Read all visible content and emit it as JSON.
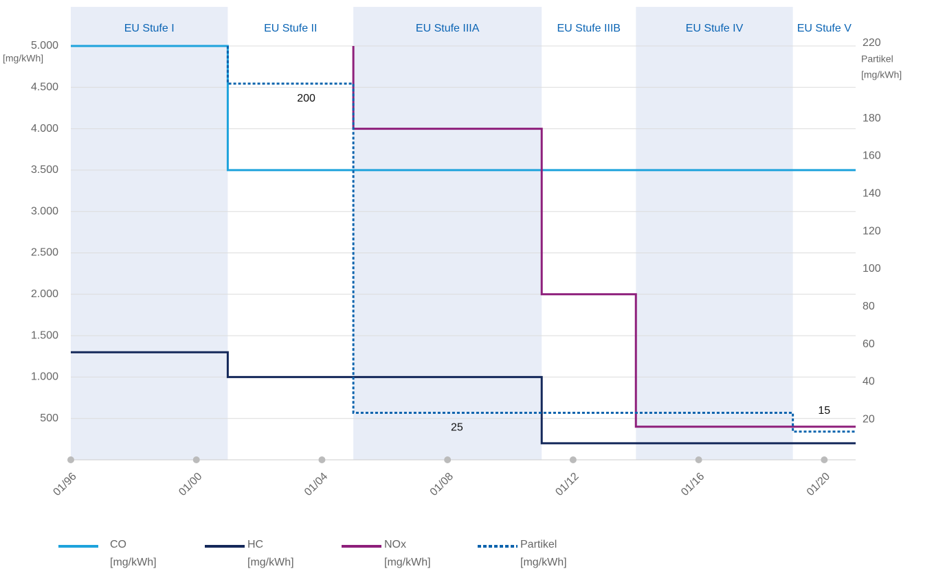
{
  "chart_data": {
    "type": "step",
    "y_label": "[mg/kWh]",
    "y2_label": [
      "Partikel",
      "[mg/kWh]"
    ],
    "xlim": [
      1996,
      2021
    ],
    "xticks": [
      {
        "value": 1996,
        "label": "01/96"
      },
      {
        "value": 2000,
        "label": "01/00"
      },
      {
        "value": 2004,
        "label": "01/04"
      },
      {
        "value": 2008,
        "label": "01/08"
      },
      {
        "value": 2012,
        "label": "01/12"
      },
      {
        "value": 2016,
        "label": "01/16"
      },
      {
        "value": 2020,
        "label": "01/20"
      }
    ],
    "ylim": [
      0,
      5000
    ],
    "yticks": [
      {
        "value": 500,
        "label": "500"
      },
      {
        "value": 1000,
        "label": "1.000"
      },
      {
        "value": 1500,
        "label": "1.500"
      },
      {
        "value": 2000,
        "label": "2.000"
      },
      {
        "value": 2500,
        "label": "2.500"
      },
      {
        "value": 3000,
        "label": "3.000"
      },
      {
        "value": 3500,
        "label": "3.500"
      },
      {
        "value": 4000,
        "label": "4.000"
      },
      {
        "value": 4500,
        "label": "4.500"
      },
      {
        "value": 5000,
        "label": "5.000"
      }
    ],
    "y2lim": [
      0,
      220
    ],
    "y2ticks": [
      20,
      40,
      60,
      80,
      100,
      120,
      140,
      160,
      180,
      220
    ],
    "grid": true,
    "bands": [
      {
        "label": "EU Stufe I",
        "from": 1996,
        "to": 2001,
        "shaded": true
      },
      {
        "label": "EU Stufe II",
        "from": 2001,
        "to": 2005,
        "shaded": false
      },
      {
        "label": "EU Stufe IIIA",
        "from": 2005,
        "to": 2011,
        "shaded": true
      },
      {
        "label": "EU Stufe IIIB",
        "from": 2011,
        "to": 2014,
        "shaded": false
      },
      {
        "label": "EU Stufe IV",
        "from": 2014,
        "to": 2019,
        "shaded": true
      },
      {
        "label": "EU Stufe V",
        "from": 2019,
        "to": 2021,
        "shaded": false
      }
    ],
    "series": [
      {
        "name": "CO",
        "unit": "[mg/kWh]",
        "color": "#1ea3dc",
        "dashed": false,
        "x": [
          1996,
          2001,
          2021
        ],
        "values": [
          5000,
          3500,
          3500
        ]
      },
      {
        "name": "HC",
        "unit": "[mg/kWh]",
        "color": "#14285a",
        "dashed": false,
        "x": [
          1996,
          2001,
          2011,
          2021
        ],
        "values": [
          1300,
          1000,
          200,
          200
        ]
      },
      {
        "name": "NOx",
        "unit": "[mg/kWh]",
        "color": "#8e1f7b",
        "dashed": false,
        "x": [
          2005,
          2005,
          2011,
          2014,
          2021
        ],
        "values": [
          5000,
          4000,
          2000,
          400,
          400
        ]
      },
      {
        "name": "Partikel",
        "unit": "[mg/kWh]",
        "color": "#0b63ad",
        "dashed": true,
        "axis": "y2",
        "x": [
          2001,
          2001,
          2005,
          2019,
          2021
        ],
        "values": [
          220,
          200,
          25,
          15,
          15
        ]
      }
    ],
    "annotations": [
      {
        "text": "200",
        "x": 2003.5,
        "y": 200,
        "axis": "y2"
      },
      {
        "text": "25",
        "x": 2008.3,
        "y": 25,
        "axis": "y2"
      },
      {
        "text": "15",
        "x": 2020,
        "y": 15,
        "axis": "y2"
      }
    ]
  }
}
